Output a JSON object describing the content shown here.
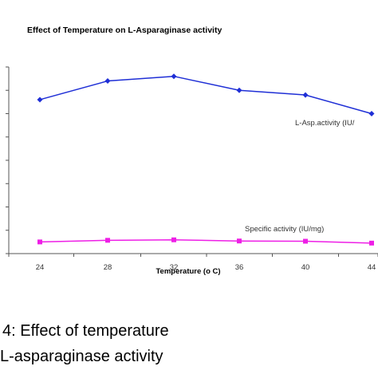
{
  "chart_data": {
    "type": "line",
    "title": "Effect of Temperature on L-Asparaginase activity",
    "xlabel": "Temperature (o C)",
    "ylabel": "",
    "categories": [
      "24",
      "28",
      "32",
      "36",
      "40",
      "44"
    ],
    "ylim": [
      0,
      8
    ],
    "grid": false,
    "series": [
      {
        "name": "L-Asp.activity (IU/",
        "color": "#1f2fd6",
        "marker": "diamond",
        "values": [
          6.6,
          7.4,
          7.6,
          7.0,
          6.8,
          6.0
        ]
      },
      {
        "name": "Specific activity (IU/mg)",
        "color": "#ee1fe6",
        "marker": "square",
        "values": [
          0.5,
          0.57,
          0.59,
          0.54,
          0.53,
          0.45
        ]
      }
    ]
  },
  "caption": {
    "line1": "4: Effect of temperature",
    "line2": "L-asparaginase activity"
  }
}
